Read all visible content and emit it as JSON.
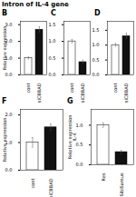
{
  "chart_data": [
    {
      "type": "bar",
      "title": "B",
      "annotations": [
        "Intron of IL-4 gene"
      ],
      "categories": [
        "cont",
        "siCBBAD"
      ],
      "values": [
        1.0,
        2.7
      ],
      "error": [
        0.08,
        0.18
      ],
      "colors": [
        "#ffffff",
        "#111111"
      ],
      "ylabel": "Relative expression",
      "ylim": [
        0,
        3.2
      ],
      "yticks": [
        0,
        1,
        2,
        3
      ]
    },
    {
      "type": "bar",
      "title": "C",
      "categories": [
        "cont",
        "siCBBAD"
      ],
      "values": [
        1.0,
        0.38
      ],
      "error": [
        0.06,
        0.06
      ],
      "colors": [
        "#ffffff",
        "#111111"
      ],
      "ylim": [
        0,
        1.6
      ],
      "yticks": [
        0,
        0.5,
        1,
        1.5
      ]
    },
    {
      "type": "bar",
      "title": "D",
      "categories": [
        "cont",
        "siCBBAD"
      ],
      "values": [
        1.0,
        1.3
      ],
      "error": [
        0.06,
        0.1
      ],
      "colors": [
        "#ffffff",
        "#111111"
      ],
      "ylim": [
        0,
        1.8
      ],
      "yticks": [
        0,
        0.5,
        1,
        1.5
      ]
    },
    {
      "type": "bar",
      "title": "F",
      "categories": [
        "cont",
        "siCBBAD"
      ],
      "values": [
        1.0,
        1.55
      ],
      "error": [
        0.18,
        0.12
      ],
      "colors": [
        "#ffffff",
        "#111111"
      ],
      "ylabel": "Relative expression",
      "ylim": [
        0,
        2.2
      ],
      "yticks": [
        0,
        1,
        2
      ]
    },
    {
      "type": "bar",
      "title": "G",
      "categories": [
        "Res",
        "SibiSamus"
      ],
      "values": [
        1.0,
        0.32
      ],
      "error": [
        0.06,
        0.04
      ],
      "colors": [
        "#ffffff",
        "#111111"
      ],
      "ylabel": "Relative expression\nIL-4",
      "ylim": [
        0,
        1.4
      ],
      "yticks": [
        0,
        0.5,
        1
      ]
    }
  ]
}
